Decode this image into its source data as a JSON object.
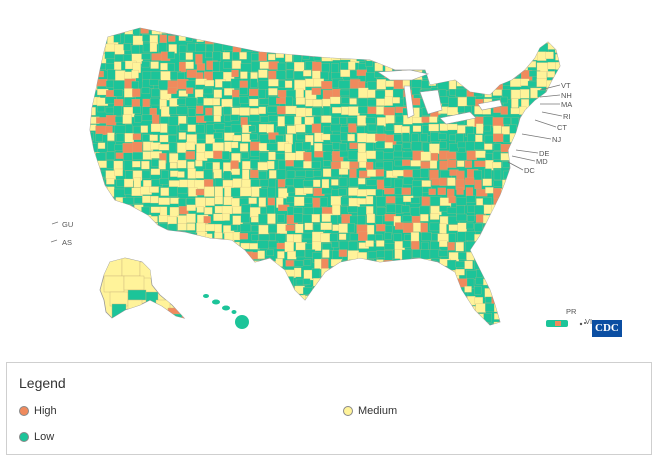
{
  "colors": {
    "high": "#f08a5d",
    "medium": "#fff39a",
    "low": "#1cc499",
    "border": "#c9b27a",
    "water": "#ffffff"
  },
  "territories": {
    "gu": "GU",
    "as": "AS",
    "pr": "PR",
    "vi": "VI"
  },
  "state_labels": {
    "vt": "VT",
    "nh": "NH",
    "ma": "MA",
    "ri": "RI",
    "ct": "CT",
    "nj": "NJ",
    "de": "DE",
    "md": "MD",
    "dc": "DC"
  },
  "logo": {
    "text": "CDC"
  },
  "legend": {
    "title": "Legend",
    "items": [
      {
        "label": "High",
        "level": "high"
      },
      {
        "label": "Medium",
        "level": "medium"
      },
      {
        "label": "Low",
        "level": "low"
      }
    ]
  }
}
